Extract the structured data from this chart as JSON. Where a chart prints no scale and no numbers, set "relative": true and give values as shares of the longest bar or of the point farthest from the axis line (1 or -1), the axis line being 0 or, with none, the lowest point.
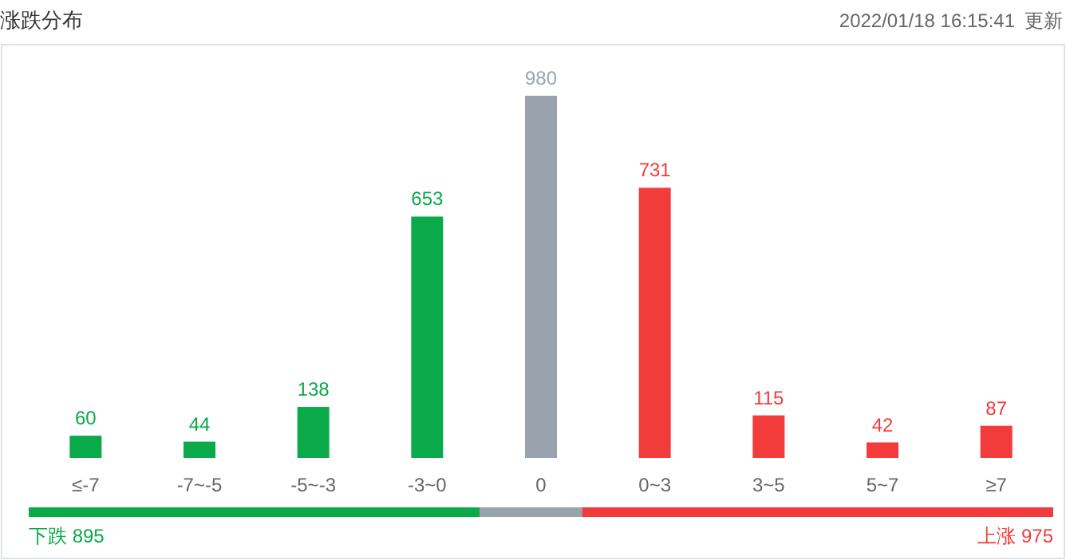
{
  "chart_data": [
    {
      "type": "bar",
      "title": "涨跌分布",
      "annotations": [
        "2022/01/18 16:15:41",
        "更新"
      ],
      "categories": [
        "≤-7",
        "-7~-5",
        "-5~-3",
        "-3~0",
        "0",
        "0~3",
        "3~5",
        "5~7",
        "≥7"
      ],
      "values": [
        60,
        44,
        138,
        653,
        980,
        731,
        115,
        42,
        87
      ],
      "colors": [
        "#0aa94a",
        "#0aa94a",
        "#0aa94a",
        "#0aa94a",
        "#9aa3ad",
        "#f23c3c",
        "#f23c3c",
        "#f23c3c",
        "#f23c3c"
      ],
      "data_labels": true
    },
    {
      "type": "bar",
      "orientation": "horizontal",
      "stacked": true,
      "relative": true,
      "categories": [
        null
      ],
      "series": [
        {
          "name": "下跌 895",
          "color": "#0aa94a",
          "values": [
            0.44
          ]
        },
        {
          "color": "#9aa3ad",
          "values": [
            0.1
          ]
        },
        {
          "name": "上涨 975",
          "color": "#f23c3c",
          "values": [
            0.46
          ]
        }
      ]
    }
  ]
}
